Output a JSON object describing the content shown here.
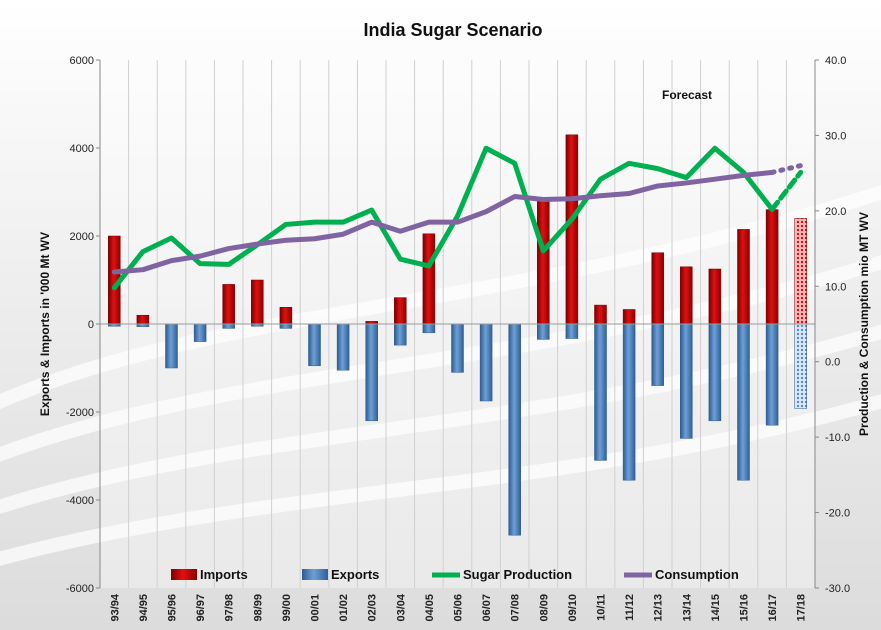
{
  "chart_data": {
    "type": "bar",
    "title": "India Sugar Scenario",
    "ylabel_left": "Exports & Imports in '000 Mt WV",
    "ylabel_right": "Production  & Consumption  mio MT WV",
    "ylim_left": [
      -6000,
      6000
    ],
    "ylim_right": [
      -30.0,
      40.0
    ],
    "yticks_left": [
      "6000",
      "4000",
      "2000",
      "0",
      "-2000",
      "-4000",
      "-6000"
    ],
    "yticks_right": [
      "40.0",
      "30.0",
      "20.0",
      "10.0",
      "0.0",
      "-10.0",
      "-20.0",
      "-30.0"
    ],
    "grid": "vertical lines",
    "legend_position": "bottom",
    "annotation": "Forecast",
    "forecast_from": "17/18",
    "categories": [
      "93/94",
      "94/95",
      "95/96",
      "96/97",
      "97/98",
      "98/99",
      "99/00",
      "00/01",
      "01/02",
      "02/03",
      "03/04",
      "04/05",
      "05/06",
      "06/07",
      "07/08",
      "08/09",
      "09/10",
      "10/11",
      "11/12",
      "12/13",
      "13/14",
      "14/15",
      "15/16",
      "16/17",
      "17/18"
    ],
    "series": [
      {
        "name": "Imports",
        "kind": "bar",
        "axis": "left",
        "color": "#d40000",
        "values": [
          2000,
          200,
          0,
          0,
          900,
          1000,
          380,
          0,
          0,
          60,
          600,
          2050,
          0,
          0,
          0,
          2800,
          4300,
          430,
          330,
          1620,
          1300,
          1250,
          2150,
          2600,
          2400
        ]
      },
      {
        "name": "Exports",
        "kind": "bar",
        "axis": "left",
        "color": "#4f81bd",
        "values": [
          -50,
          -60,
          -1000,
          -400,
          -100,
          -50,
          -100,
          -950,
          -1050,
          -2200,
          -480,
          -200,
          -1100,
          -1750,
          -4800,
          -350,
          -330,
          -3100,
          -3550,
          -1400,
          -2600,
          -2200,
          -3550,
          -2300,
          -1920
        ]
      },
      {
        "name": "Sugar Production",
        "kind": "line",
        "axis": "right",
        "color": "#00b050",
        "values": [
          9.8,
          14.6,
          16.4,
          13.0,
          12.9,
          15.5,
          18.2,
          18.5,
          18.5,
          20.1,
          13.6,
          12.7,
          19.3,
          28.3,
          26.3,
          14.7,
          18.9,
          24.2,
          26.3,
          25.6,
          24.4,
          28.3,
          25.1,
          20.2,
          25.1
        ]
      },
      {
        "name": "Consumption",
        "kind": "line",
        "axis": "right",
        "color": "#8064a2",
        "values": [
          11.9,
          12.2,
          13.4,
          14.0,
          15.0,
          15.6,
          16.1,
          16.3,
          16.9,
          18.5,
          17.3,
          18.5,
          18.5,
          19.9,
          21.9,
          21.5,
          21.6,
          22.0,
          22.3,
          23.3,
          23.7,
          24.2,
          24.7,
          25.1,
          26.0
        ]
      }
    ]
  }
}
